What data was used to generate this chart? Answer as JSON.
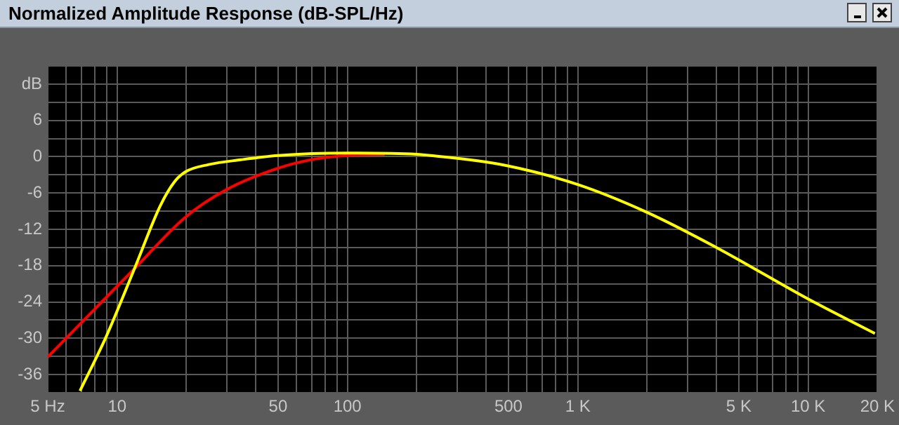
{
  "chart_data": {
    "type": "line",
    "title": "Normalized Amplitude Response (dB-SPL/Hz)",
    "log": "x",
    "grid": true,
    "legend": false,
    "marker": "none",
    "line_style": "solid",
    "xlim": [
      5,
      20000
    ],
    "xticks": [
      {
        "value": 5,
        "label": "5 Hz"
      },
      {
        "value": 6,
        "label": null
      },
      {
        "value": 7,
        "label": null
      },
      {
        "value": 8,
        "label": null
      },
      {
        "value": 9,
        "label": null
      },
      10,
      {
        "value": 20,
        "label": null
      },
      {
        "value": 30,
        "label": null
      },
      {
        "value": 40,
        "label": null
      },
      50,
      {
        "value": 60,
        "label": null
      },
      {
        "value": 70,
        "label": null
      },
      {
        "value": 80,
        "label": null
      },
      {
        "value": 90,
        "label": null
      },
      100,
      {
        "value": 200,
        "label": null
      },
      {
        "value": 300,
        "label": null
      },
      {
        "value": 400,
        "label": null
      },
      500,
      {
        "value": 600,
        "label": null
      },
      {
        "value": 700,
        "label": null
      },
      {
        "value": 800,
        "label": null
      },
      {
        "value": 900,
        "label": null
      },
      {
        "value": 1000,
        "label": "1 K"
      },
      {
        "value": 2000,
        "label": null
      },
      {
        "value": 3000,
        "label": null
      },
      {
        "value": 4000,
        "label": null
      },
      {
        "value": 5000,
        "label": "5 K"
      },
      {
        "value": 6000,
        "label": null
      },
      {
        "value": 7000,
        "label": null
      },
      {
        "value": 8000,
        "label": null
      },
      {
        "value": 9000,
        "label": null
      },
      {
        "value": 10000,
        "label": "10 K"
      },
      {
        "value": 20000,
        "label": "20 K"
      }
    ],
    "ylim": [
      -39,
      15
    ],
    "yticks": [
      {
        "value": -39,
        "label": null
      },
      -36,
      {
        "value": -33,
        "label": null
      },
      -30,
      {
        "value": -27,
        "label": null
      },
      -24,
      {
        "value": -21,
        "label": null
      },
      -18,
      {
        "value": -15,
        "label": null
      },
      -12,
      {
        "value": -9,
        "label": null
      },
      -6,
      {
        "value": -3,
        "label": null
      },
      0,
      {
        "value": 3,
        "label": null
      },
      6,
      {
        "value": 9,
        "label": null
      },
      {
        "value": 12,
        "label": "dB"
      },
      {
        "value": 15,
        "label": null
      }
    ],
    "series": [
      {
        "color": "#ff0000",
        "x": [
          5,
          7.9,
          11.9,
          19.8,
          30,
          50,
          72,
          100,
          145
        ],
        "values": [
          -33.1,
          -25.4,
          -18.5,
          -10,
          -5.4,
          -1.9,
          -0.4,
          0.2,
          0.4
        ]
      },
      {
        "color": "#ffff00",
        "x": [
          6.9,
          9,
          11.9,
          15.4,
          17.7,
          19.8,
          25,
          34.5,
          50,
          100,
          200,
          230,
          480,
          1000,
          2000,
          4000,
          10000,
          19500
        ],
        "values": [
          -38.7,
          -29.6,
          -18.5,
          -8.1,
          -4.2,
          -2.5,
          -1.3,
          -0.5,
          0.2,
          0.6,
          0.4,
          0.2,
          -1.4,
          -4.6,
          -9.2,
          -15,
          -23.5,
          -29.2
        ]
      }
    ]
  }
}
